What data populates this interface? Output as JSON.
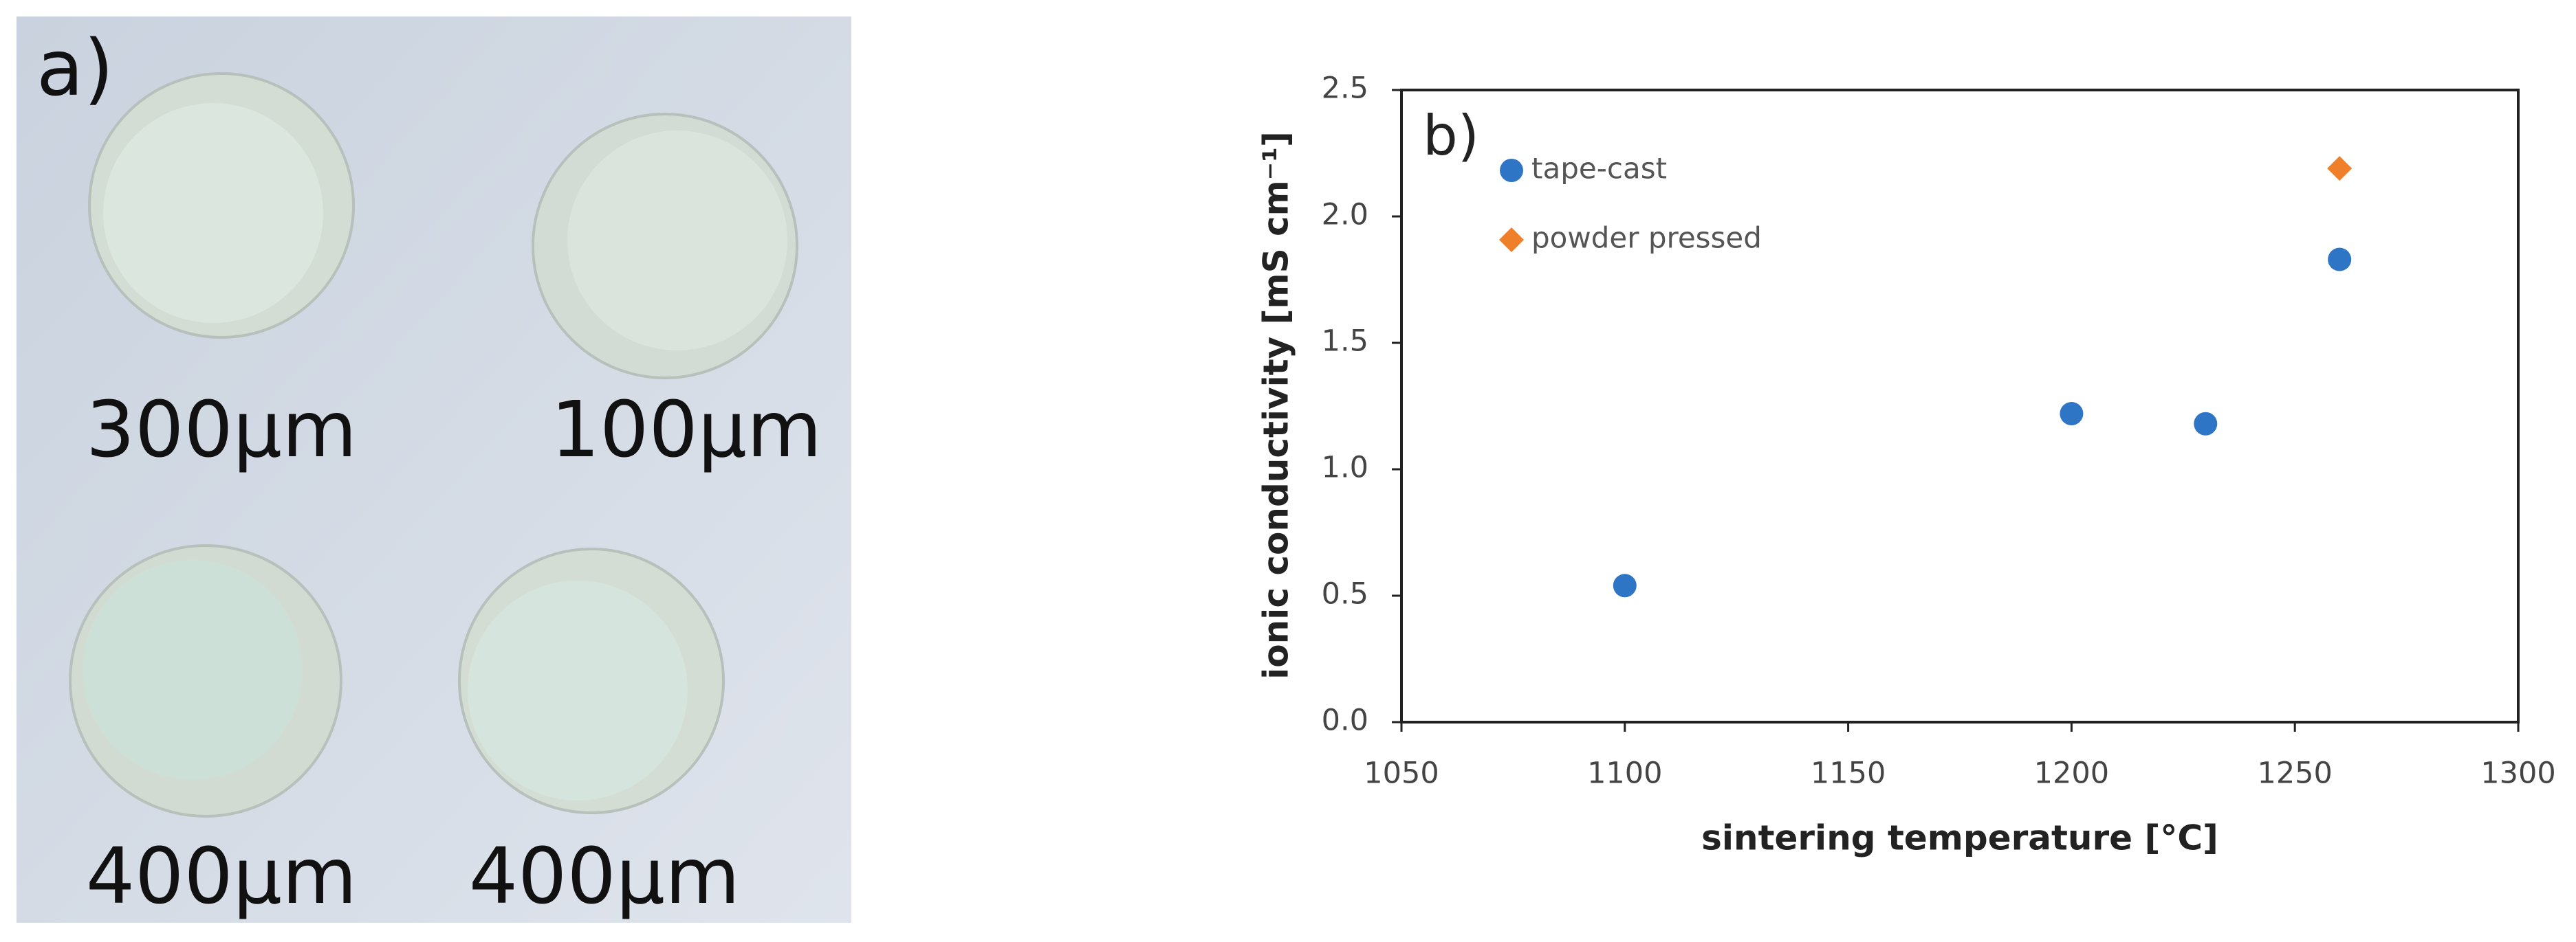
{
  "photo": {
    "panel_label": "a)",
    "labels": [
      "300µm",
      "100µm",
      "400µm",
      "400µm"
    ]
  },
  "chart_data": {
    "type": "scatter",
    "panel_label": "b)",
    "x_label": "sintering temperature [°C]",
    "y_label": "ionic conductivity [mS cm⁻¹]",
    "series": [
      {
        "name": "tape-cast",
        "color": "#2e75c6",
        "marker": "circle",
        "x": [
          1100,
          1200,
          1230,
          1260
        ],
        "values": [
          0.54,
          1.22,
          1.18,
          1.83
        ]
      },
      {
        "name": "powder pressed",
        "color": "#f07f2a",
        "marker": "diamond",
        "x": [
          1260
        ],
        "values": [
          2.19
        ]
      }
    ],
    "xlim": [
      1050,
      1300
    ],
    "xticks": [
      1050,
      1100,
      1150,
      1200,
      1250,
      1300
    ],
    "ylim": [
      0,
      2.5
    ],
    "yticks": [
      {
        "value": 0,
        "label": "0.0"
      },
      0.5,
      {
        "value": 1,
        "label": "1.0"
      },
      1.5,
      {
        "value": 2,
        "label": "2.0"
      },
      2.5
    ],
    "grid": false,
    "legend": "upper left"
  }
}
